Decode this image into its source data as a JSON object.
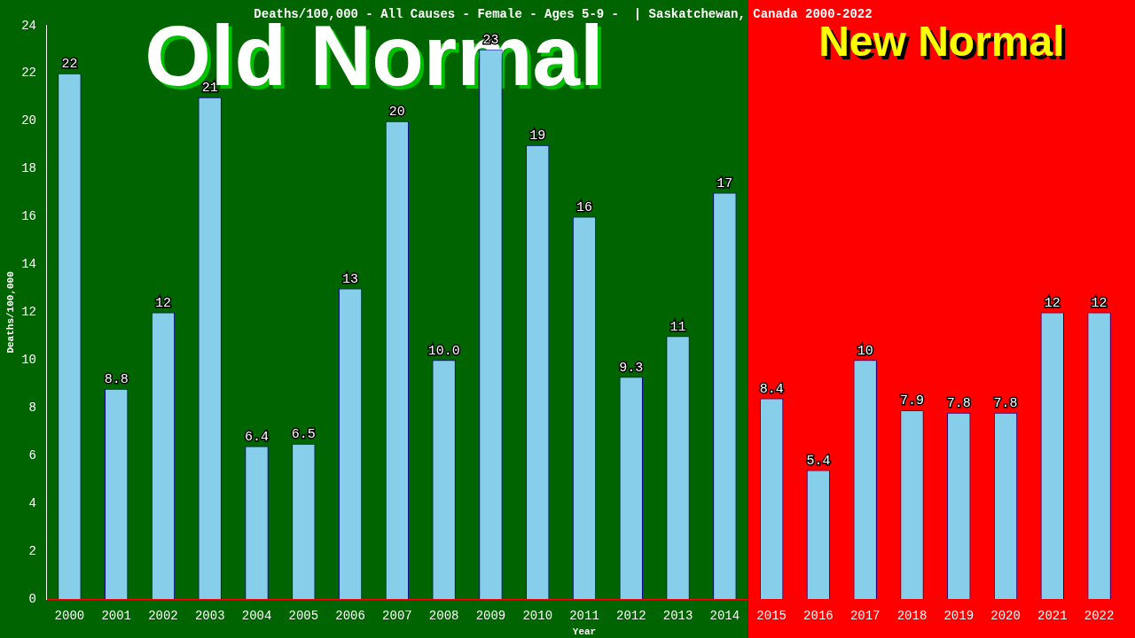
{
  "chart_data": {
    "type": "bar",
    "title": "Deaths/100,000 - All Causes - Female - Ages 5-9 -  | Saskatchewan, Canada 2000-2022",
    "xlabel": "Year",
    "ylabel": "Deaths/100,000",
    "categories": [
      "2000",
      "2001",
      "2002",
      "2003",
      "2004",
      "2005",
      "2006",
      "2007",
      "2008",
      "2009",
      "2010",
      "2011",
      "2012",
      "2013",
      "2014",
      "2015",
      "2016",
      "2017",
      "2018",
      "2019",
      "2020",
      "2021",
      "2022"
    ],
    "values": [
      22,
      8.8,
      12,
      21,
      6.4,
      6.5,
      13,
      20,
      10.0,
      23,
      19,
      16,
      9.3,
      11,
      17,
      8.4,
      5.4,
      10,
      7.9,
      7.8,
      7.8,
      12,
      12
    ],
    "value_labels": [
      "22",
      "8.8",
      "12",
      "21",
      "6.4",
      "6.5",
      "13",
      "20",
      "10.0",
      "23",
      "19",
      "16",
      "9.3",
      "11",
      "17",
      "8.4",
      "5.4",
      "10",
      "7.9",
      "7.8",
      "7.8",
      "12",
      "12"
    ],
    "color": "#87ceeb",
    "ylim": [
      0,
      24
    ],
    "yticks": [
      0,
      2,
      4,
      6,
      8,
      10,
      12,
      14,
      16,
      18,
      20,
      22,
      24
    ],
    "grid": false,
    "legend": false,
    "bands": [
      {
        "axis": "x",
        "from": "2000",
        "to": "2014",
        "label": "Old Normal",
        "color": "#006400"
      },
      {
        "axis": "x",
        "from": "2015",
        "to": "2022",
        "label": "New Normal",
        "color": "#ff0000"
      }
    ]
  }
}
